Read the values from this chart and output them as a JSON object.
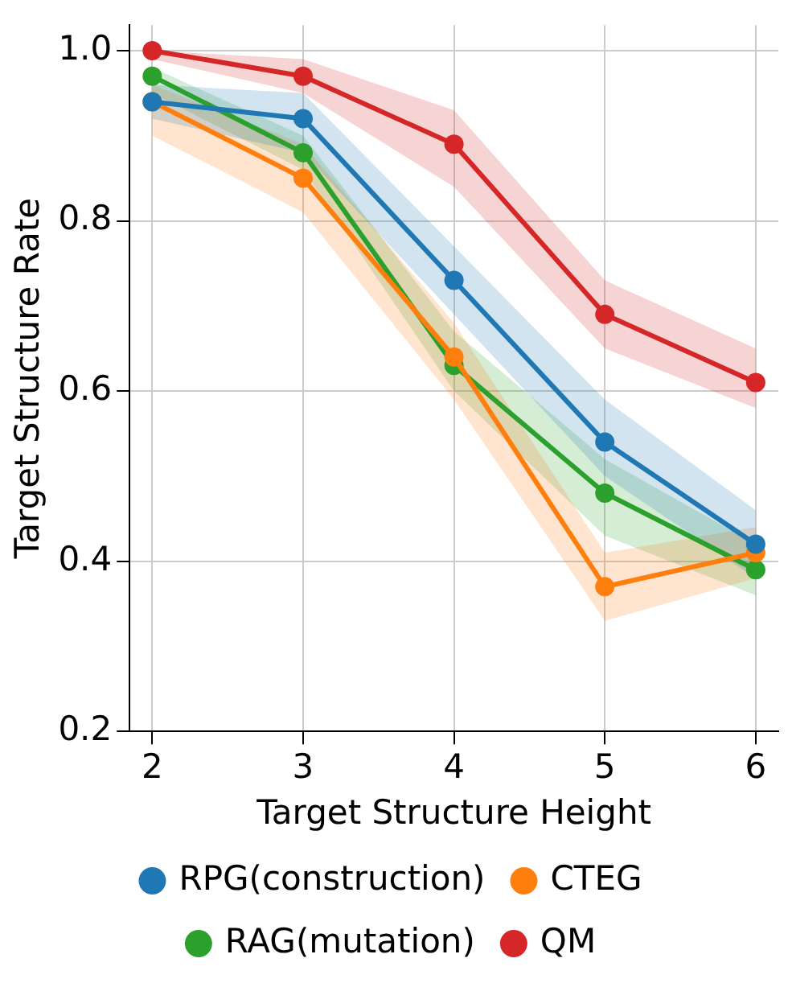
{
  "chart_data": {
    "type": "line",
    "xlabel": "Target Structure Height",
    "ylabel": "Target Structure Rate",
    "x": [
      2,
      3,
      4,
      5,
      6
    ],
    "xlim": [
      1.85,
      6.15
    ],
    "xticks": [
      2,
      3,
      4,
      5,
      6
    ],
    "ylim": [
      0.2,
      1.03
    ],
    "yticks": [
      0.2,
      0.4,
      0.6,
      0.8,
      {
        "value": 1,
        "label": "1.0"
      }
    ],
    "grid": true,
    "legend": "bottom",
    "marker": "circle",
    "line_style": "solid",
    "series": [
      {
        "name": "RPG(construction)",
        "color": "#1f77b4",
        "values": [
          0.94,
          0.92,
          0.73,
          0.54,
          0.42
        ],
        "lower": [
          0.92,
          0.88,
          0.69,
          0.5,
          0.38
        ],
        "upper": [
          0.96,
          0.95,
          0.77,
          0.59,
          0.46
        ]
      },
      {
        "name": "CTEG",
        "color": "#ff7f0e",
        "values": [
          0.94,
          0.85,
          0.64,
          0.37,
          0.41
        ],
        "lower": [
          0.9,
          0.81,
          0.59,
          0.33,
          0.38
        ],
        "upper": [
          0.96,
          0.89,
          0.68,
          0.41,
          0.44
        ]
      },
      {
        "name": "RAG(mutation)",
        "color": "#2ca02c",
        "values": [
          0.97,
          0.88,
          0.63,
          0.48,
          0.39
        ],
        "lower": [
          0.95,
          0.86,
          0.6,
          0.43,
          0.36
        ],
        "upper": [
          0.98,
          0.9,
          0.67,
          0.52,
          0.42
        ]
      },
      {
        "name": "QM",
        "color": "#d62728",
        "values": [
          1.0,
          0.97,
          0.89,
          0.69,
          0.61
        ],
        "lower": [
          0.99,
          0.95,
          0.84,
          0.65,
          0.58
        ],
        "upper": [
          1.0,
          0.99,
          0.93,
          0.73,
          0.65
        ]
      }
    ]
  }
}
